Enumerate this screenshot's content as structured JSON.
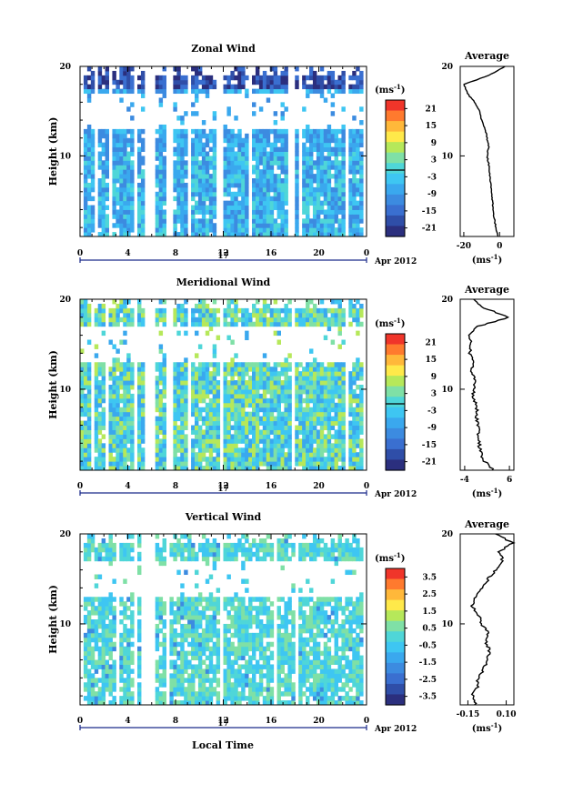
{
  "figure": {
    "xlabel": "Local Time",
    "date_day": "17",
    "date_month": "Apr 2012",
    "unit": "(ms",
    "unit_exp": "-1",
    "unit_close": ")"
  },
  "colors": {
    "scale": [
      "#2b2f7e",
      "#2f4ea8",
      "#3a6fd0",
      "#3c8be0",
      "#3aa8ee",
      "#3ec6f2",
      "#4fd6d8",
      "#7fe0a6",
      "#b6e85a",
      "#ffe94a",
      "#ffb83a",
      "#ff7a2e",
      "#f0352a"
    ]
  },
  "chart_data": [
    {
      "type": "heatmap",
      "title": "Zonal Wind",
      "xlabel": "",
      "ylabel": "Height (km)",
      "xlim": [
        0,
        24
      ],
      "ylim": [
        1,
        20
      ],
      "xticks": [
        "0",
        "4",
        "8",
        "12",
        "16",
        "20",
        "0"
      ],
      "yticks": [
        "10",
        "20"
      ],
      "colorbar": {
        "label": "(ms-1)",
        "ticks": [
          "21",
          "15",
          "9",
          "3",
          "-3",
          "-9",
          "-15",
          "-21"
        ],
        "range": [
          -24,
          24
        ]
      },
      "data_gaps_hours": [
        [
          0,
          0.3
        ],
        [
          1.2,
          1.5
        ],
        [
          2.4,
          2.7
        ],
        [
          4.5,
          4.8
        ],
        [
          5.3,
          6.4
        ],
        [
          7.2,
          7.9
        ],
        [
          9.0,
          9.4
        ],
        [
          11.4,
          12.0
        ],
        [
          14.0,
          14.3
        ],
        [
          17.5,
          17.9
        ],
        [
          18.3,
          18.6
        ],
        [
          22.1,
          22.5
        ],
        [
          23.7,
          24
        ]
      ],
      "data_gap_heights_km": [
        [
          13.0,
          17.0
        ]
      ],
      "profile": {
        "title": "Average",
        "xlim": [
          -22,
          8
        ],
        "ylim": [
          1,
          20
        ],
        "xticks": [
          "-20",
          "0"
        ],
        "yticks": [
          "10",
          "20"
        ],
        "height_km": [
          1,
          2,
          3,
          4,
          5,
          6,
          7,
          8,
          9,
          10,
          11,
          12,
          13,
          14,
          15,
          16,
          17,
          18,
          19,
          20
        ],
        "values": [
          -1,
          -2,
          -3,
          -3.5,
          -4,
          -4.5,
          -5,
          -5.5,
          -6,
          -7,
          -6,
          -7,
          -8,
          -10,
          -11,
          -14,
          -18,
          -20,
          -6,
          3
        ]
      }
    },
    {
      "type": "heatmap",
      "title": "Meridional Wind",
      "xlabel": "",
      "ylabel": "Height (km)",
      "xlim": [
        0,
        24
      ],
      "ylim": [
        1,
        20
      ],
      "xticks": [
        "0",
        "4",
        "8",
        "12",
        "16",
        "20",
        "0"
      ],
      "yticks": [
        "10",
        "20"
      ],
      "colorbar": {
        "label": "(ms-1)",
        "ticks": [
          "21",
          "15",
          "9",
          "3",
          "-3",
          "-9",
          "-15",
          "-21"
        ],
        "range": [
          -24,
          24
        ]
      },
      "data_gaps_hours": [
        [
          1.0,
          1.2
        ],
        [
          2.0,
          2.3
        ],
        [
          4.6,
          4.9
        ],
        [
          5.3,
          6.3
        ],
        [
          7.2,
          7.8
        ],
        [
          9.0,
          9.4
        ],
        [
          11.6,
          12.0
        ],
        [
          14.0,
          14.2
        ],
        [
          17.6,
          17.9
        ],
        [
          22.1,
          22.5
        ],
        [
          23.6,
          24
        ]
      ],
      "data_gap_heights_km": [
        [
          13.0,
          17.0
        ]
      ],
      "profile": {
        "title": "Average",
        "xlim": [
          -5,
          7
        ],
        "ylim": [
          1,
          20
        ],
        "xticks": [
          "-4",
          "6"
        ],
        "yticks": [
          "10",
          "20"
        ],
        "height_km": [
          1,
          2,
          3,
          4,
          5,
          6,
          7,
          8,
          9,
          10,
          11,
          12,
          13,
          14,
          15,
          16,
          17,
          18,
          19,
          20
        ],
        "values": [
          2.5,
          0.5,
          -0.5,
          -0.8,
          -1,
          -1,
          -1.5,
          -1.2,
          -2,
          -2,
          -1.5,
          -2.5,
          -2,
          -3,
          -2.5,
          -3,
          -1,
          6,
          0.5,
          -2
        ]
      }
    },
    {
      "type": "heatmap",
      "title": "Vertical Wind",
      "xlabel": "Local Time",
      "ylabel": "Height (km)",
      "xlim": [
        0,
        24
      ],
      "ylim": [
        1,
        20
      ],
      "xticks": [
        "0",
        "4",
        "8",
        "12",
        "16",
        "20",
        "0"
      ],
      "yticks": [
        "10",
        "20"
      ],
      "colorbar": {
        "label": "(ms-1)",
        "ticks": [
          "3.5",
          "2.5",
          "1.5",
          "0.5",
          "-0.5",
          "-1.5",
          "-2.5",
          "-3.5"
        ],
        "range": [
          -4,
          4
        ]
      },
      "data_gaps_hours": [
        [
          0,
          0.2
        ],
        [
          2.9,
          3.2
        ],
        [
          4.6,
          4.9
        ],
        [
          5.2,
          6.2
        ],
        [
          7.2,
          7.6
        ],
        [
          11.8,
          12.1
        ],
        [
          16.3,
          16.6
        ],
        [
          18.0,
          18.3
        ],
        [
          23.6,
          24
        ]
      ],
      "data_gap_heights_km": [
        [
          13.0,
          17.0
        ]
      ],
      "profile": {
        "title": "Average",
        "xlim": [
          -0.2,
          0.15
        ],
        "ylim": [
          1,
          20
        ],
        "xticks": [
          "-0.15",
          "0.10"
        ],
        "yticks": [
          "10",
          "20"
        ],
        "height_km": [
          1,
          2,
          3,
          4,
          5,
          6,
          7,
          8,
          9,
          10,
          11,
          12,
          13,
          14,
          15,
          16,
          17,
          18,
          19,
          20
        ],
        "values": [
          -0.1,
          -0.12,
          -0.09,
          -0.08,
          -0.05,
          -0.02,
          -0.01,
          -0.03,
          -0.02,
          -0.06,
          -0.08,
          -0.12,
          -0.1,
          -0.05,
          -0.02,
          0.03,
          0.08,
          0.05,
          0.14,
          0.03
        ]
      }
    }
  ]
}
